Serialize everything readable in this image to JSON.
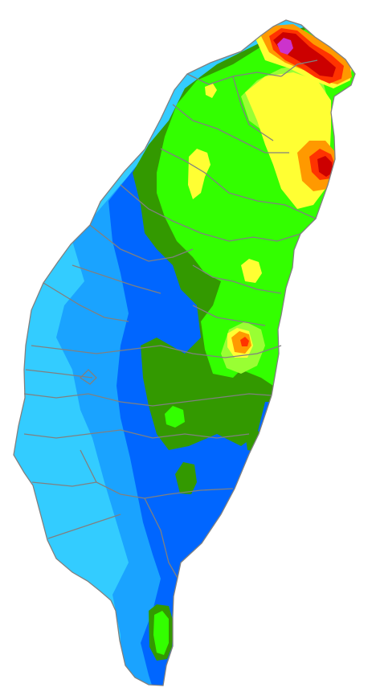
{
  "map": {
    "type": "contour-precipitation-map",
    "region": "",
    "palette": {
      "light-cyan": "#33ccff",
      "sky-blue": "#1aa3ff",
      "blue": "#0066ff",
      "dark-green": "#339900",
      "green": "#33ff00",
      "yellow-green": "#99ff33",
      "yellow": "#ffff33",
      "orange": "#ff9900",
      "red": "#ff3300",
      "dark-red": "#cc0000",
      "purple": "#cc33cc",
      "border-gray": "#808080"
    }
  }
}
